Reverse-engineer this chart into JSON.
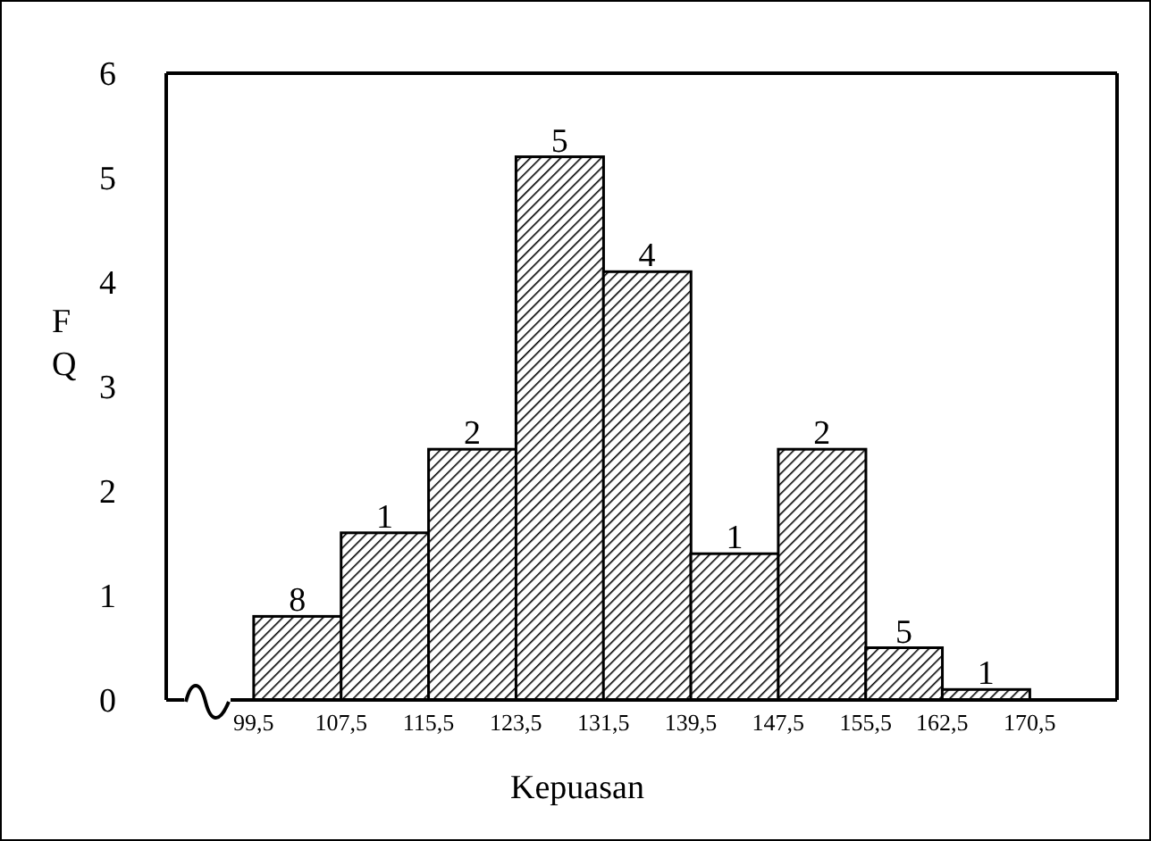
{
  "chart_data": {
    "type": "histogram",
    "xlabel": "Kepuasan",
    "ylabel": "FQ",
    "bins": [
      99.5,
      107.5,
      115.5,
      123.5,
      131.5,
      139.5,
      147.5,
      155.5,
      162.5,
      170.5
    ],
    "values": [
      0.8,
      1.6,
      2.4,
      5.2,
      4.1,
      1.4,
      2.4,
      0.5,
      0.1
    ],
    "annotations": [
      {
        "text": "8",
        "x": 103.5,
        "y": 0.8
      },
      {
        "text": "1",
        "x": 111.5,
        "y": 1.6
      },
      {
        "text": "2",
        "x": 119.5,
        "y": 2.4
      },
      {
        "text": "5",
        "x": 127.5,
        "y": 5.2
      },
      {
        "text": "4",
        "x": 135.5,
        "y": 4.1
      },
      {
        "text": "1",
        "x": 143.5,
        "y": 1.4
      },
      {
        "text": "2",
        "x": 151.5,
        "y": 2.4
      },
      {
        "text": "5",
        "x": 159,
        "y": 0.5
      },
      {
        "text": "1",
        "x": 166.5,
        "y": 0.1
      }
    ],
    "color": "#000000",
    "xlim": [
      91.5,
      178.5
    ],
    "xticks": [
      {
        "value": 99.5,
        "label": "99,5"
      },
      {
        "value": 107.5,
        "label": "107,5"
      },
      {
        "value": 115.5,
        "label": "115,5"
      },
      {
        "value": 123.5,
        "label": "123,5"
      },
      {
        "value": 131.5,
        "label": "131,5"
      },
      {
        "value": 139.5,
        "label": "139,5"
      },
      {
        "value": 147.5,
        "label": "147,5"
      },
      {
        "value": 155.5,
        "label": "155,5"
      },
      {
        "value": 162.5,
        "label": "162,5"
      },
      {
        "value": 170.5,
        "label": "170,5"
      }
    ],
    "ylim": [
      0,
      6
    ],
    "yticks": [
      0,
      1,
      2,
      3,
      4,
      5,
      6
    ],
    "grid": false
  }
}
